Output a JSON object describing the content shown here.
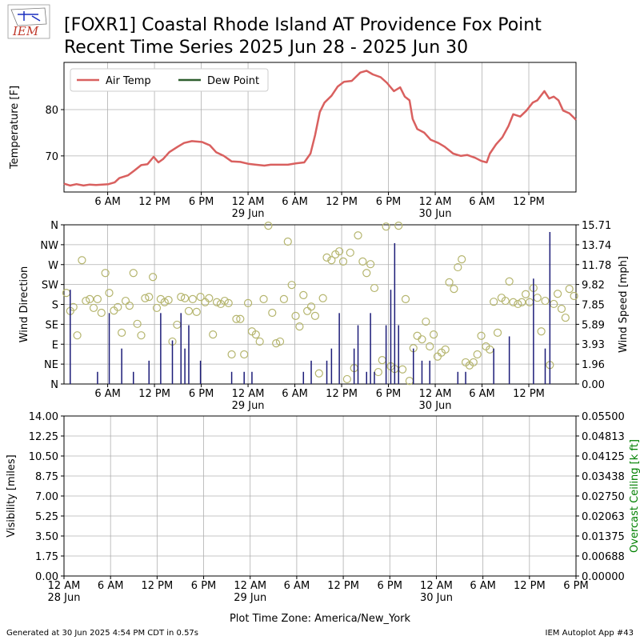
{
  "title": [
    "[FOXR1] Coastal Rhode Island  AT Providence Fox Point",
    "Recent Time Series 2025 Jun 28 - 2025 Jun 30"
  ],
  "logo": "IEM",
  "footer_left": "Generated at 30 Jun 2025 4:54 PM CDT in 0.57s",
  "footer_right": "IEM Autoplot App #43",
  "chart_data": [
    {
      "type": "line",
      "ylabel": "Temperature [F]",
      "grid": true,
      "legend": "upper left",
      "xlim": [
        0.4,
        66.05
      ],
      "ylim": [
        62.2,
        90.2
      ],
      "yticks": [
        70,
        80
      ],
      "xticks": [
        {
          "value": 6,
          "label": "6 AM"
        },
        {
          "value": 12,
          "label": "12 PM"
        },
        {
          "value": 18,
          "label": "6 PM"
        },
        {
          "value": 24,
          "label": "12 AM\n29 Jun"
        },
        {
          "value": 30,
          "label": "6 AM"
        },
        {
          "value": 36,
          "label": "12 PM"
        },
        {
          "value": 42,
          "label": "6 PM"
        },
        {
          "value": 48,
          "label": "12 AM\n30 Jun"
        },
        {
          "value": 54,
          "label": "6 AM"
        },
        {
          "value": 60,
          "label": "12 PM"
        }
      ],
      "x": [
        0.4,
        1.2,
        2.0,
        2.9,
        3.7,
        4.5,
        5.3,
        6.1,
        6.9,
        7.5,
        8.6,
        9.4,
        10.3,
        11.1,
        11.9,
        12.5,
        13.1,
        13.9,
        15.0,
        15.8,
        16.8,
        18.1,
        19.1,
        19.9,
        20.9,
        21.9,
        23.0,
        24.0,
        25.0,
        26.1,
        26.9,
        27.9,
        29.1,
        30.2,
        31.2,
        32.0,
        32.6,
        33.2,
        33.8,
        34.7,
        35.5,
        36.3,
        37.3,
        38.4,
        39.2,
        40.0,
        41.0,
        41.8,
        42.7,
        43.5,
        44.1,
        44.7,
        45.1,
        45.7,
        46.6,
        47.4,
        48.4,
        49.2,
        50.3,
        51.3,
        52.1,
        53.1,
        53.9,
        54.6,
        55.0,
        55.8,
        56.6,
        57.4,
        58.0,
        58.9,
        59.7,
        60.5,
        61.1,
        62.0,
        62.6,
        63.2,
        63.8,
        64.4,
        65.2,
        66.05
      ],
      "series": [
        {
          "name": "Air Temp",
          "color": "#d9605f",
          "values": [
            64.0,
            63.6,
            63.9,
            63.6,
            63.8,
            63.7,
            63.8,
            63.9,
            64.3,
            65.2,
            65.8,
            66.8,
            68.0,
            68.2,
            69.8,
            68.6,
            69.3,
            70.8,
            72.0,
            72.8,
            73.2,
            73.0,
            72.3,
            70.8,
            70.0,
            68.8,
            68.7,
            68.3,
            68.1,
            67.9,
            68.1,
            68.1,
            68.1,
            68.4,
            68.6,
            70.5,
            74.5,
            79.5,
            81.5,
            83.0,
            85.0,
            86.0,
            86.2,
            88.0,
            88.4,
            87.6,
            87.0,
            85.8,
            84.0,
            84.8,
            82.8,
            82.0,
            78.0,
            75.8,
            75.0,
            73.5,
            72.8,
            72.0,
            70.5,
            70.0,
            70.2,
            69.6,
            68.9,
            68.6,
            70.5,
            72.5,
            74.0,
            76.5,
            79.0,
            78.5,
            79.8,
            81.5,
            82.0,
            84.0,
            82.4,
            82.8,
            82.0,
            79.8,
            79.2,
            77.8
          ]
        },
        {
          "name": "Dew Point",
          "color": "#2e5e2e",
          "values": [
            null,
            null,
            null,
            null,
            null,
            null,
            null,
            null,
            null,
            null,
            null,
            null,
            null,
            null,
            null,
            null,
            null,
            null,
            null,
            null,
            null,
            null,
            null,
            null,
            null,
            null,
            null,
            null,
            null,
            null,
            null,
            null,
            null,
            null,
            null,
            null,
            null,
            null,
            null,
            null,
            null,
            null,
            null,
            null,
            null,
            null,
            null,
            null,
            null,
            null,
            null,
            null,
            null,
            null,
            null,
            null,
            null,
            null,
            null,
            null,
            null,
            null,
            null,
            null,
            null,
            null,
            null,
            null,
            null,
            null,
            null,
            null,
            null,
            null,
            null,
            null,
            null,
            null,
            null,
            null
          ]
        }
      ]
    },
    {
      "type": "scatter",
      "ylabel": "Wind Direction",
      "y2label": "Wind Speed [mph]",
      "grid": true,
      "xlim": [
        0.4,
        66.05
      ],
      "ylim": [
        0,
        360
      ],
      "y2lim": [
        0,
        15.71
      ],
      "yticks": [
        {
          "value": 0,
          "label": "N"
        },
        {
          "value": 45,
          "label": "NE"
        },
        {
          "value": 90,
          "label": "E"
        },
        {
          "value": 135,
          "label": "SE"
        },
        {
          "value": 180,
          "label": "S"
        },
        {
          "value": 225,
          "label": "SW"
        },
        {
          "value": 270,
          "label": "W"
        },
        {
          "value": 315,
          "label": "NW"
        },
        {
          "value": 360,
          "label": "N"
        }
      ],
      "y2ticks": [
        {
          "value": 0,
          "label": "0.00"
        },
        1.96,
        3.93,
        5.89,
        7.85,
        9.82,
        11.78,
        13.74,
        15.71
      ],
      "xticks": [
        {
          "value": 6,
          "label": "6 AM"
        },
        {
          "value": 12,
          "label": "12 PM"
        },
        {
          "value": 18,
          "label": "6 PM"
        },
        {
          "value": 24,
          "label": "12 AM\n29 Jun"
        },
        {
          "value": 30,
          "label": "6 AM"
        },
        {
          "value": 36,
          "label": "12 PM"
        },
        {
          "value": 42,
          "label": "6 PM"
        },
        {
          "value": 48,
          "label": "12 AM\n30 Jun"
        },
        {
          "value": 54,
          "label": "6 AM"
        },
        {
          "value": 60,
          "label": "12 PM"
        }
      ],
      "x": [
        0.7,
        1.2,
        1.6,
        2.1,
        2.7,
        3.2,
        3.7,
        4.2,
        4.7,
        5.2,
        5.7,
        6.2,
        6.8,
        7.3,
        7.8,
        8.3,
        8.8,
        9.3,
        9.8,
        10.3,
        10.8,
        11.3,
        11.8,
        12.3,
        12.8,
        13.3,
        13.8,
        14.3,
        14.9,
        15.4,
        15.9,
        16.4,
        16.9,
        17.4,
        17.9,
        18.5,
        19.0,
        19.5,
        20.0,
        20.5,
        21.0,
        21.5,
        21.9,
        22.5,
        23.0,
        23.5,
        24.0,
        24.5,
        25.0,
        25.5,
        26.0,
        26.6,
        27.1,
        27.6,
        28.1,
        28.6,
        29.1,
        29.6,
        30.1,
        30.6,
        31.1,
        31.6,
        32.1,
        32.6,
        33.1,
        33.6,
        34.1,
        34.7,
        35.2,
        35.7,
        36.2,
        36.7,
        37.1,
        37.6,
        38.1,
        38.7,
        39.2,
        39.7,
        40.2,
        40.7,
        41.2,
        41.7,
        42.3,
        42.8,
        43.3,
        43.8,
        44.2,
        44.7,
        45.2,
        45.7,
        46.3,
        46.8,
        47.3,
        47.8,
        48.3,
        48.8,
        49.3,
        49.8,
        50.4,
        50.9,
        51.4,
        51.9,
        52.4,
        52.9,
        53.4,
        53.9,
        54.5,
        55.0,
        55.5,
        56.0,
        56.5,
        57.0,
        57.5,
        58.0,
        58.6,
        59.1,
        59.6,
        60.1,
        60.6,
        61.1,
        61.6,
        62.1,
        62.7,
        63.2,
        63.7,
        64.2,
        64.7,
        65.2,
        65.8
      ],
      "series": [
        {
          "kind": "scatter",
          "color": "#b5b56e",
          "values": [
            206,
            165,
            174,
            110,
            280,
            188,
            192,
            172,
            192,
            161,
            251,
            206,
            166,
            174,
            116,
            188,
            177,
            251,
            136,
            110,
            194,
            197,
            242,
            172,
            192,
            185,
            190,
            96,
            134,
            197,
            194,
            165,
            192,
            163,
            197,
            185,
            194,
            112,
            185,
            181,
            188,
            183,
            67,
            147,
            147,
            67,
            183,
            119,
            112,
            96,
            192,
            358,
            161,
            92,
            96,
            192,
            322,
            224,
            154,
            130,
            201,
            165,
            175,
            154,
            24,
            194,
            286,
            280,
            293,
            300,
            277,
            11,
            297,
            36,
            336,
            277,
            251,
            271,
            217,
            27,
            54,
            356,
            40,
            34,
            358,
            33,
            192,
            7,
            81,
            109,
            101,
            141,
            85,
            112,
            62,
            71,
            78,
            230,
            215,
            264,
            282,
            49,
            42,
            49,
            67,
            109,
            85,
            78,
            186,
            116,
            195,
            188,
            232,
            185,
            181,
            185,
            203,
            185,
            217,
            195,
            119,
            188,
            43,
            181,
            204,
            170,
            150,
            215,
            199
          ]
        },
        {
          "kind": "bar",
          "axis": "y2",
          "color": "#1c1c78",
          "values": [
            0,
            9.3,
            0,
            0,
            0,
            0,
            0,
            0,
            1.2,
            0,
            0,
            7.0,
            0,
            0,
            3.5,
            0,
            0,
            1.2,
            0,
            0,
            0,
            2.3,
            0,
            0,
            7.0,
            0,
            0,
            4.3,
            0,
            7.0,
            3.5,
            5.8,
            0,
            0,
            2.3,
            0,
            0,
            0,
            0,
            0,
            0,
            0,
            1.2,
            0,
            0,
            1.2,
            0,
            1.2,
            0,
            0,
            0,
            0,
            0,
            0,
            0,
            0,
            0,
            0,
            0,
            0,
            1.2,
            0,
            2.3,
            0,
            0,
            0,
            2.3,
            3.5,
            0,
            7.0,
            0,
            0,
            0,
            3.5,
            5.8,
            0,
            1.2,
            7.0,
            1.2,
            0,
            0,
            5.8,
            9.3,
            13.9,
            5.8,
            0,
            0,
            0,
            3.5,
            0,
            2.3,
            0,
            2.3,
            0,
            0,
            0,
            0,
            0,
            0,
            1.2,
            0,
            1.2,
            0,
            0,
            0,
            0,
            0,
            0,
            3.5,
            0,
            0,
            0,
            4.7,
            0,
            0,
            0,
            0,
            0,
            10.4,
            0,
            0,
            3.5,
            15.0,
            0,
            0,
            0,
            0,
            0,
            0
          ]
        }
      ]
    },
    {
      "type": "line",
      "ylabel": "Visibility [miles]",
      "y2label": "Overcast Ceiling [k ft]",
      "y2label_color": "#008000",
      "grid": true,
      "xlabel": "Plot Time Zone: America/New_York",
      "xlim": [
        0,
        66
      ],
      "ylim": [
        0,
        14
      ],
      "y2lim": [
        0,
        0.055
      ],
      "yticks": [
        {
          "value": 0,
          "label": "0.00"
        },
        1.75,
        {
          "value": 3.5,
          "label": "3.50"
        },
        5.25,
        {
          "value": 7,
          "label": "7.00"
        },
        8.75,
        {
          "value": 10.5,
          "label": "10.50"
        },
        12.25,
        {
          "value": 14,
          "label": "14.00"
        }
      ],
      "y2ticks": [
        {
          "value": 0,
          "label": "0.00000"
        },
        0.00688,
        0.01375,
        0.02063,
        {
          "value": 0.0275,
          "label": "0.02750"
        },
        0.03438,
        0.04125,
        0.04813,
        {
          "value": 0.055,
          "label": "0.05500"
        }
      ],
      "xticks": [
        {
          "value": 0,
          "label": "12 AM\n28 Jun"
        },
        {
          "value": 6,
          "label": "6 AM"
        },
        {
          "value": 12,
          "label": "12 PM"
        },
        {
          "value": 18,
          "label": "6 PM"
        },
        {
          "value": 24,
          "label": "12 AM\n29 Jun"
        },
        {
          "value": 30,
          "label": "6 AM"
        },
        {
          "value": 36,
          "label": "12 PM"
        },
        {
          "value": 42,
          "label": "6 PM"
        },
        {
          "value": 48,
          "label": "12 AM\n30 Jun"
        },
        {
          "value": 54,
          "label": "6 AM"
        },
        {
          "value": 60,
          "label": "12 PM"
        },
        {
          "value": 66,
          "label": "6 PM"
        }
      ],
      "series": []
    }
  ]
}
